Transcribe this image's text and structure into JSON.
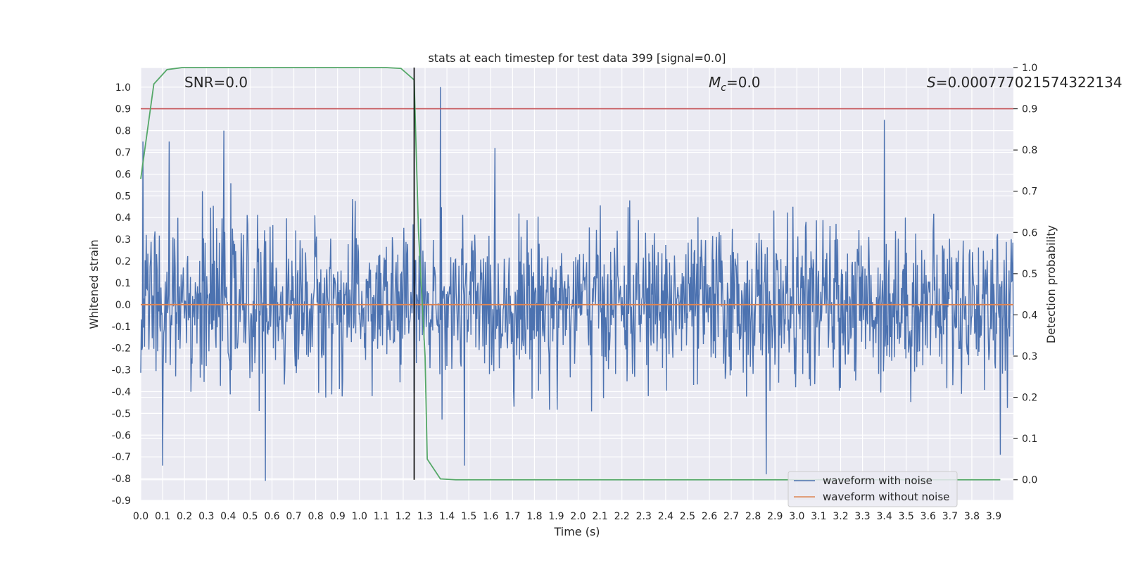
{
  "chart_data": {
    "type": "line",
    "title": "stats at each timestep for test data 399 [signal=0.0]",
    "xlabel": "Time (s)",
    "ylabel": "Whitened strain",
    "y2label": "Detection probability",
    "xlim": [
      0.0,
      3.99
    ],
    "ylim": [
      -0.9,
      1.09
    ],
    "y2lim": [
      -0.05,
      1.0
    ],
    "x_ticks": [
      "0.0",
      "0.1",
      "0.2",
      "0.3",
      "0.4",
      "0.5",
      "0.6",
      "0.7",
      "0.8",
      "0.9",
      "1.0",
      "1.1",
      "1.2",
      "1.3",
      "1.4",
      "1.5",
      "1.6",
      "1.7",
      "1.8",
      "1.9",
      "2.0",
      "2.1",
      "2.2",
      "2.3",
      "2.4",
      "2.5",
      "2.6",
      "2.7",
      "2.8",
      "2.9",
      "3.0",
      "3.1",
      "3.2",
      "3.3",
      "3.4",
      "3.5",
      "3.6",
      "3.7",
      "3.8",
      "3.9"
    ],
    "y_ticks": [
      "1.0",
      "0.9",
      "0.8",
      "0.7",
      "0.6",
      "0.5",
      "0.4",
      "0.3",
      "0.2",
      "0.1",
      "0.0",
      "-0.1",
      "-0.2",
      "-0.3",
      "-0.4",
      "-0.5",
      "-0.6",
      "-0.7",
      "-0.8",
      "-0.9"
    ],
    "y2_ticks": [
      "1.0",
      "0.9",
      "0.8",
      "0.7",
      "0.6",
      "0.5",
      "0.4",
      "0.3",
      "0.2",
      "0.1",
      "0.0"
    ],
    "annotations": {
      "snr": "SNR=0.0",
      "mc_symbol": "M",
      "mc_sub": "c",
      "mc_value": "=0.0",
      "s_symbol": "S",
      "s_value": "=0.000777021574322134"
    },
    "legend": {
      "position": "lower-right",
      "entries": [
        "waveform with noise",
        "waveform without noise"
      ]
    },
    "threshold_detection_probability": 0.9,
    "marker_time": 1.25,
    "noise_amplitude_envelope": 0.35,
    "noise_peaks": [
      {
        "x": 1.37,
        "y": 1.0
      },
      {
        "x": 3.4,
        "y": 0.85
      },
      {
        "x": 0.38,
        "y": 0.8
      },
      {
        "x": 0.13,
        "y": 0.75
      },
      {
        "x": 0.01,
        "y": 0.75
      },
      {
        "x": 0.57,
        "y": -0.81
      },
      {
        "x": 2.86,
        "y": -0.78
      },
      {
        "x": 0.1,
        "y": -0.74
      },
      {
        "x": 1.48,
        "y": -0.74
      },
      {
        "x": 3.93,
        "y": -0.69
      }
    ],
    "series": [
      {
        "name": "waveform with noise",
        "color": "#4c72b0",
        "axis": "left",
        "kind": "noise"
      },
      {
        "name": "waveform without noise",
        "color": "#dd8452",
        "axis": "left",
        "x": [
          0.0,
          3.99
        ],
        "y": [
          0.0,
          0.0
        ]
      },
      {
        "name": "detection probability",
        "color": "#55a868",
        "axis": "right",
        "x": [
          0.0,
          0.06,
          0.12,
          0.19,
          0.25,
          0.5,
          0.75,
          1.0,
          1.12,
          1.19,
          1.25,
          1.27,
          1.3,
          1.31,
          1.37,
          1.44,
          1.5,
          2.0,
          3.0,
          3.93
        ],
        "y": [
          0.73,
          0.96,
          0.995,
          1.0,
          1.0,
          1.0,
          1.0,
          1.0,
          1.0,
          0.998,
          0.97,
          0.6,
          0.3,
          0.05,
          0.002,
          0.0,
          0.0,
          0.0,
          0.0,
          0.0
        ]
      }
    ],
    "colors": {
      "background": "#eaeaf2",
      "grid": "#ffffff",
      "threshold": "#c44e52",
      "marker": "#000000"
    }
  }
}
